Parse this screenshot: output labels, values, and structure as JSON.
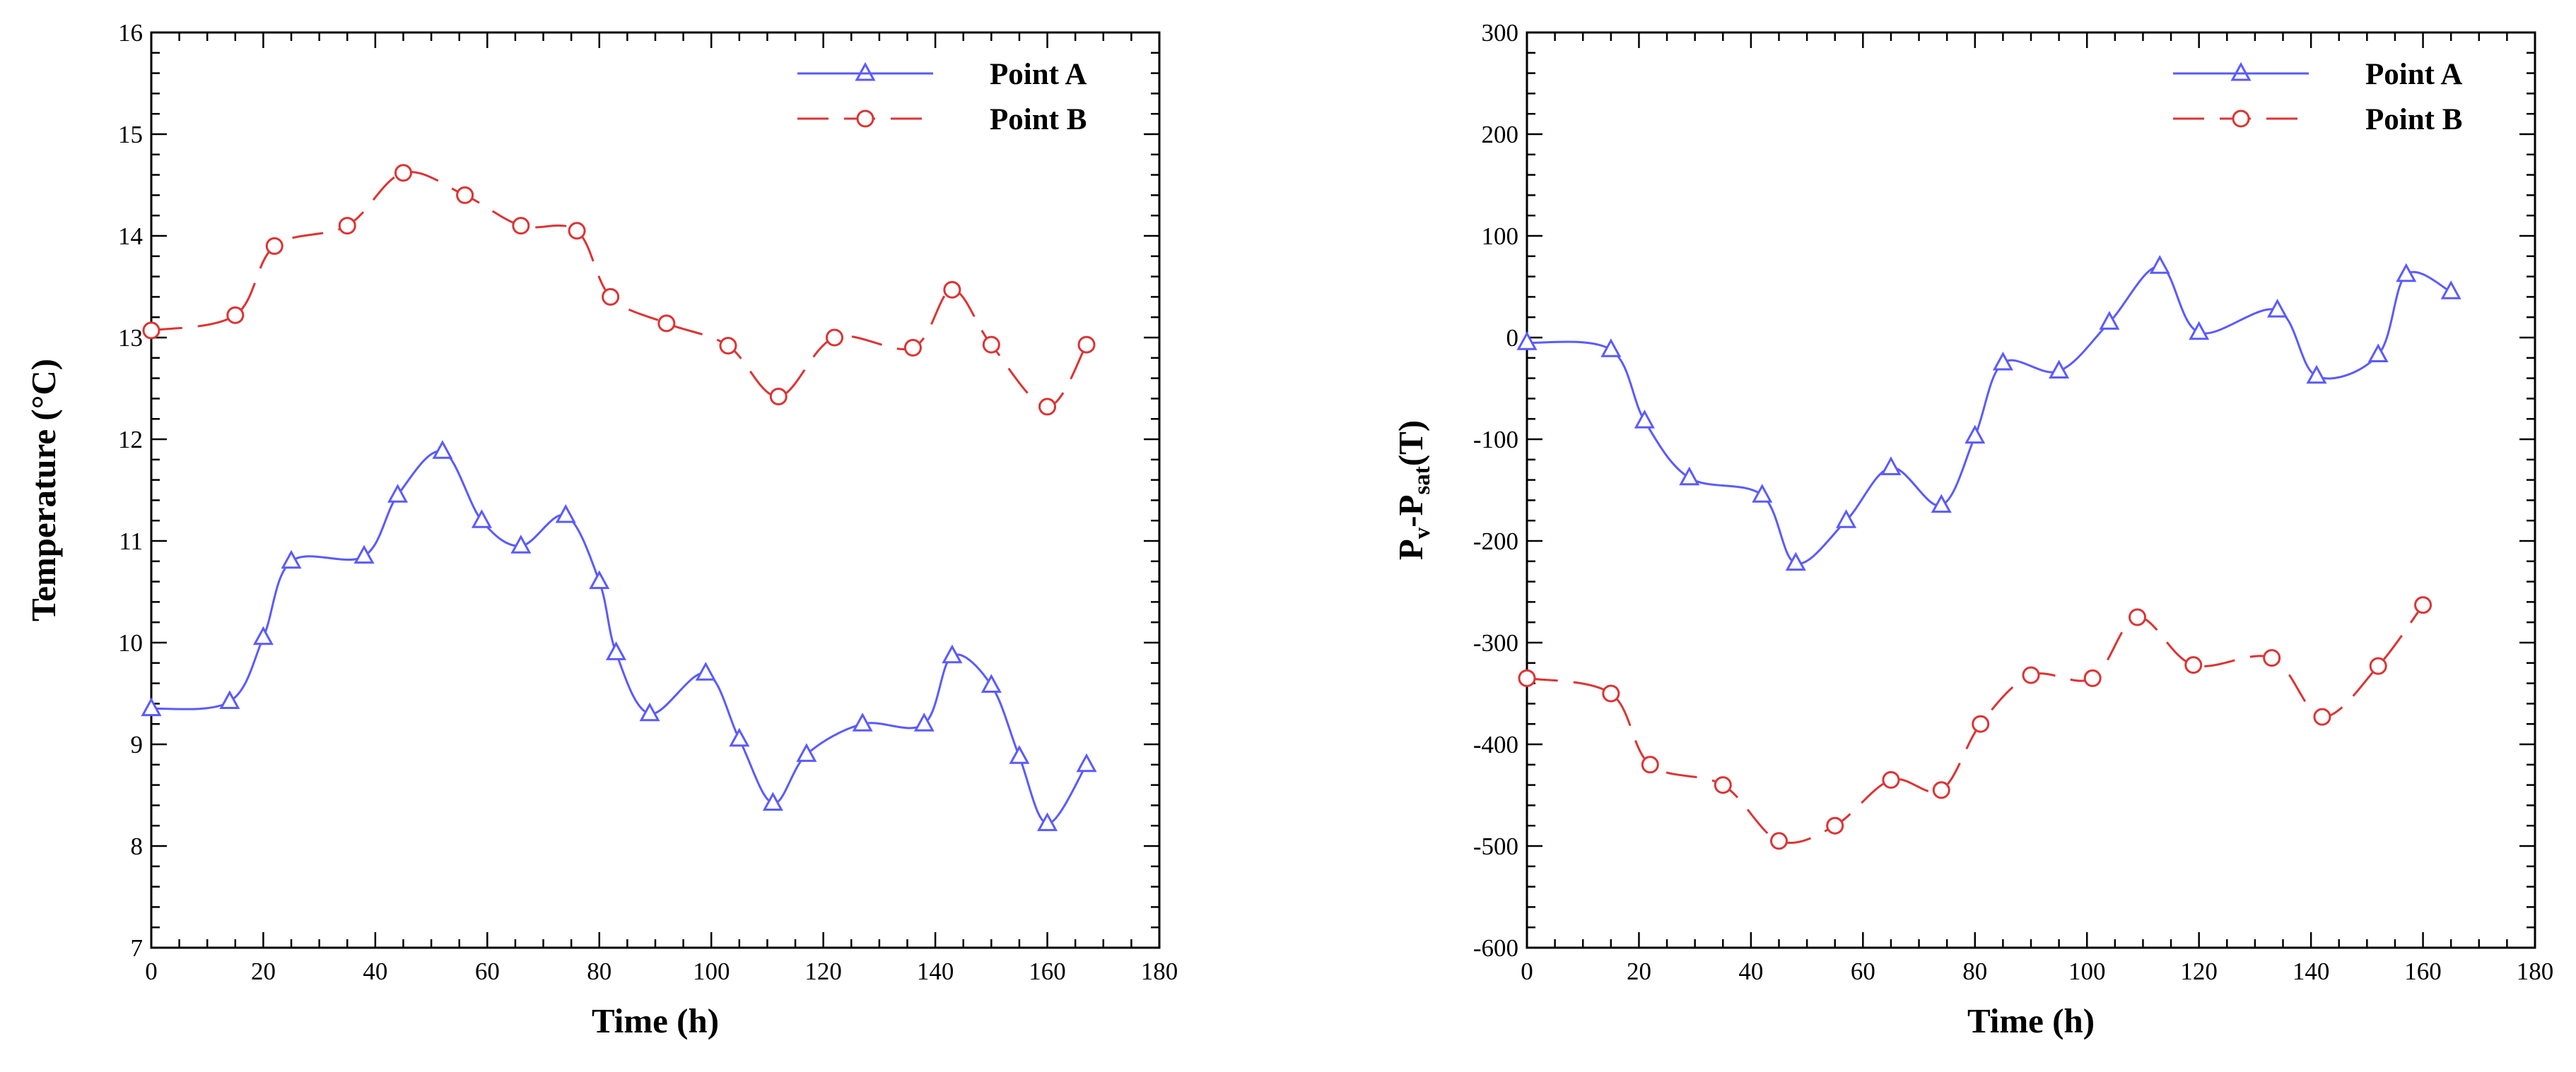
{
  "charts": [
    {
      "id": "temperature",
      "chart_data": {
        "type": "line",
        "title": "",
        "xlabel": "Time (h)",
        "ylabel": "Temperature (°C)",
        "xlim": [
          0,
          180
        ],
        "ylim": [
          7,
          16
        ],
        "xticks": [
          0,
          20,
          40,
          60,
          80,
          100,
          120,
          140,
          160,
          180
        ],
        "yticks": [
          7,
          8,
          9,
          10,
          11,
          12,
          13,
          14,
          15,
          16
        ],
        "grid": false,
        "legend_position": "top-right",
        "series": [
          {
            "name": "Point A",
            "color": "#5a5aff",
            "line": "solid",
            "marker": "triangle",
            "x": [
              0,
              14,
              20,
              25,
              38,
              44,
              52,
              59,
              66,
              74,
              80,
              83,
              89,
              99,
              105,
              111,
              117,
              127,
              138,
              143,
              150,
              155,
              160,
              167
            ],
            "y": [
              9.35,
              9.42,
              10.05,
              10.8,
              10.85,
              11.45,
              11.88,
              11.2,
              10.95,
              11.25,
              10.6,
              9.9,
              9.3,
              9.7,
              9.05,
              8.42,
              8.9,
              9.2,
              9.2,
              9.87,
              9.58,
              8.88,
              8.22,
              8.8
            ]
          },
          {
            "name": "Point B",
            "color": "#dd3333",
            "line": "dashed",
            "marker": "circle",
            "x": [
              0,
              15,
              22,
              35,
              45,
              56,
              66,
              76,
              82,
              92,
              103,
              112,
              122,
              136,
              143,
              150,
              160,
              167
            ],
            "y": [
              13.07,
              13.22,
              13.9,
              14.1,
              14.62,
              14.4,
              14.1,
              14.05,
              13.4,
              13.14,
              12.92,
              12.42,
              13.0,
              12.9,
              13.47,
              12.93,
              12.32,
              12.93
            ]
          }
        ]
      }
    },
    {
      "id": "pressure",
      "chart_data": {
        "type": "line",
        "title": "",
        "xlabel": "Time (h)",
        "ylabel_parts": [
          "P",
          "v",
          "-P",
          "sat",
          "(T)"
        ],
        "xlim": [
          0,
          180
        ],
        "ylim": [
          -600,
          300
        ],
        "xticks": [
          0,
          20,
          40,
          60,
          80,
          100,
          120,
          140,
          160,
          180
        ],
        "yticks": [
          -600,
          -500,
          -400,
          -300,
          -200,
          -100,
          0,
          100,
          200,
          300
        ],
        "grid": false,
        "legend_position": "top-right",
        "series": [
          {
            "name": "Point A",
            "color": "#5a5aff",
            "line": "solid",
            "marker": "triangle",
            "x": [
              0,
              15,
              21,
              29,
              42,
              48,
              57,
              65,
              74,
              80,
              85,
              95,
              104,
              113,
              120,
              134,
              141,
              152,
              157,
              165
            ],
            "y": [
              -5,
              -12,
              -82,
              -138,
              -155,
              -222,
              -180,
              -128,
              -165,
              -97,
              -25,
              -33,
              15,
              70,
              5,
              27,
              -38,
              -17,
              62,
              45
            ]
          },
          {
            "name": "Point B",
            "color": "#dd3333",
            "line": "dashed",
            "marker": "circle",
            "x": [
              0,
              15,
              22,
              35,
              45,
              55,
              65,
              74,
              81,
              90,
              101,
              109,
              119,
              133,
              142,
              152,
              160
            ],
            "y": [
              -335,
              -350,
              -420,
              -440,
              -495,
              -480,
              -435,
              -445,
              -380,
              -332,
              -335,
              -275,
              -322,
              -315,
              -373,
              -323,
              -263
            ]
          }
        ]
      }
    }
  ]
}
